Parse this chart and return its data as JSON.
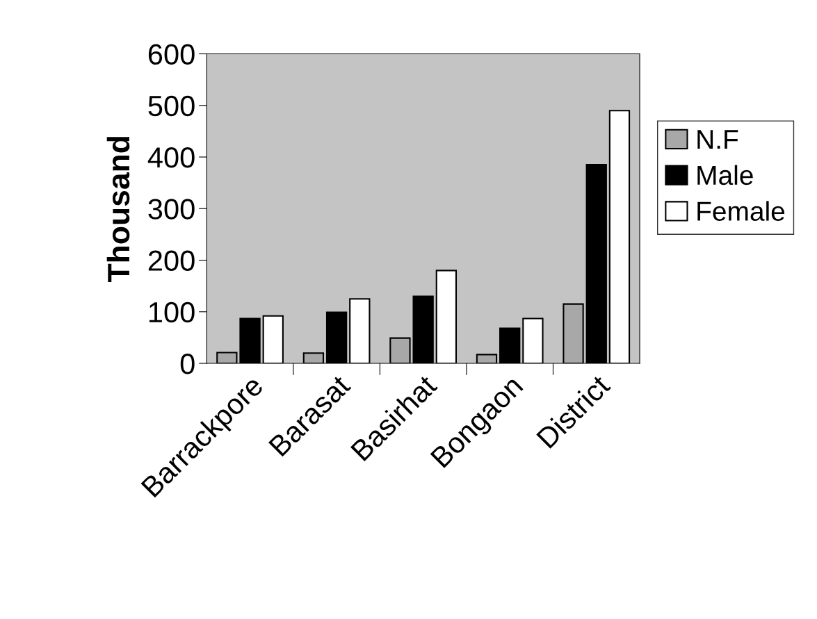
{
  "chart_data": {
    "type": "bar",
    "ylabel": "Thousand",
    "categories": [
      "Barrackpore",
      "Barasat",
      "Basirhat",
      "Bongaon",
      "District"
    ],
    "series": [
      {
        "name": "N.F",
        "color": "#a8a8a8",
        "values": [
          21,
          20,
          49,
          17,
          115
        ]
      },
      {
        "name": "Male",
        "color": "#000000",
        "values": [
          87,
          99,
          130,
          68,
          385
        ]
      },
      {
        "name": "Female",
        "color": "#ffffff",
        "values": [
          92,
          125,
          180,
          87,
          490
        ]
      }
    ],
    "ylim": [
      0,
      600
    ],
    "yticks": [
      0,
      100,
      200,
      300,
      400,
      500,
      600
    ],
    "grid": false,
    "legend": "right"
  }
}
